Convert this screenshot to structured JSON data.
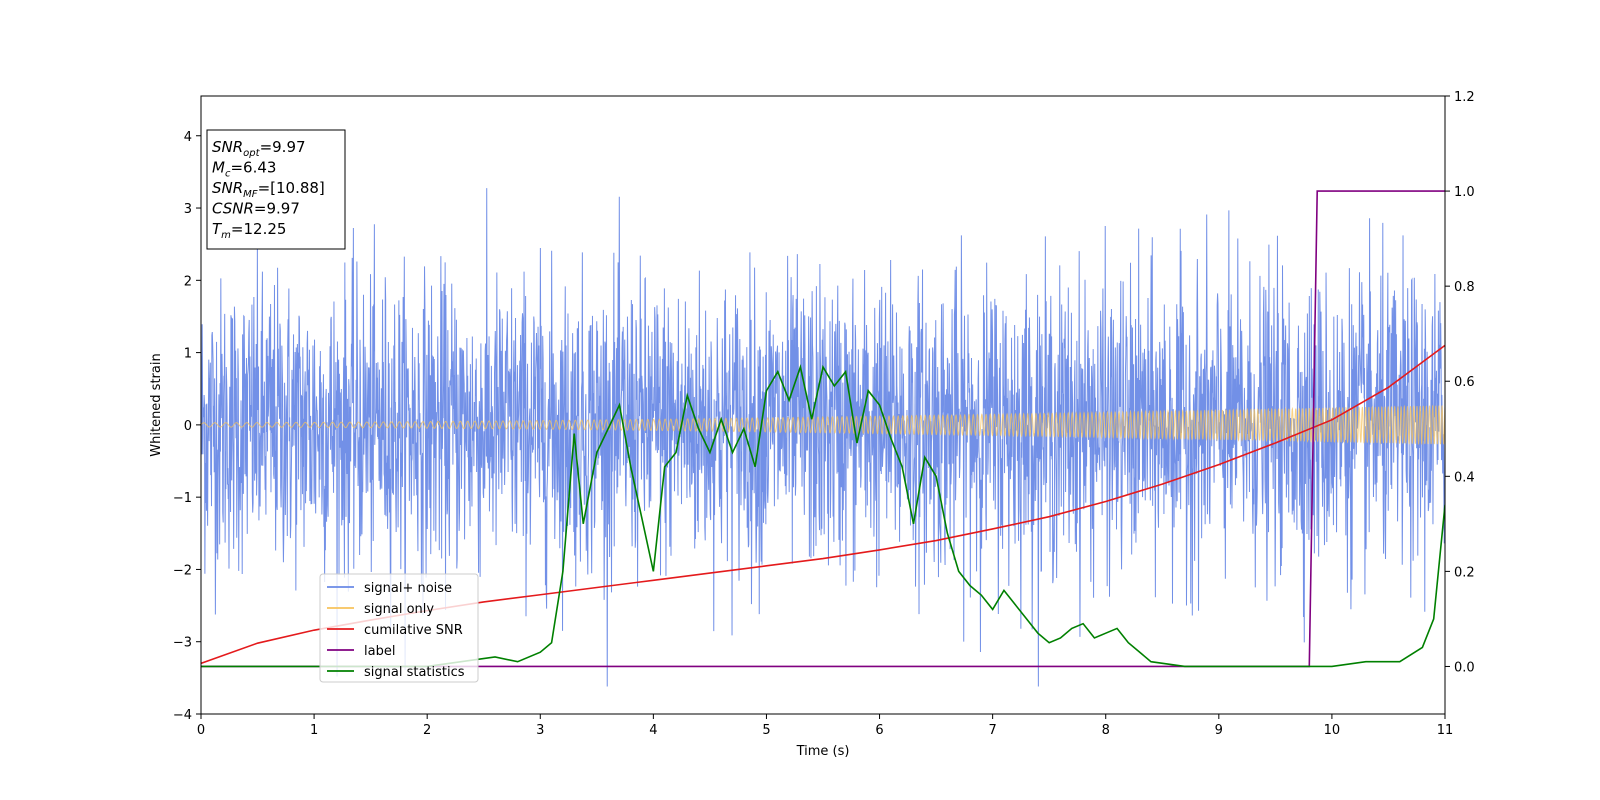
{
  "chart_data": {
    "type": "line",
    "title": "",
    "xlabel": "Time (s)",
    "ylabel_left": "Whitened strain",
    "ylabel_right": "",
    "xlim": [
      0,
      11
    ],
    "ylim_left": [
      -4,
      4.55
    ],
    "ylim_right": [
      -0.1,
      1.2
    ],
    "x_ticks": [
      "0",
      "1",
      "2",
      "3",
      "4",
      "5",
      "6",
      "7",
      "8",
      "9",
      "10",
      "11"
    ],
    "y_ticks_left": [
      "−4",
      "−3",
      "−2",
      "−1",
      "0",
      "1",
      "2",
      "3",
      "4"
    ],
    "y_ticks_right": [
      "0.0",
      "0.2",
      "0.4",
      "0.6",
      "0.8",
      "1.0",
      "1.2"
    ],
    "grid": false,
    "legend_position": "lower-left",
    "annotation": {
      "lines": [
        {
          "base": "SNR",
          "sub": "opt",
          "text": "=9.97"
        },
        {
          "base": "M",
          "sub": "c",
          "text": "=6.43"
        },
        {
          "base": "SNR",
          "sub": "MF",
          "text": "=[10.88]"
        },
        {
          "base": "CSNR",
          "sub": "",
          "text": "=9.97"
        },
        {
          "base": "T",
          "sub": "m",
          "text": "=12.25"
        }
      ]
    },
    "series": [
      {
        "name": "signal+ noise",
        "color": "#6a8ae6",
        "axis": "left",
        "envelope": {
          "std": 1.0,
          "peak_max": 4.15,
          "peak_min": -3.62
        }
      },
      {
        "name": "signal only",
        "color": "#f7c35c",
        "axis": "left",
        "amplitude_start": 0.03,
        "amplitude_end": 0.27
      },
      {
        "name": "cumilative SNR",
        "color": "#e41a1c",
        "axis": "left",
        "x": [
          0,
          0.5,
          1,
          1.5,
          2,
          2.5,
          3,
          3.5,
          4,
          4.5,
          5,
          5.5,
          6,
          6.5,
          7,
          7.5,
          8,
          8.5,
          9,
          9.5,
          10,
          10.5,
          11
        ],
        "y": [
          -3.3,
          -3.02,
          -2.84,
          -2.7,
          -2.57,
          -2.45,
          -2.35,
          -2.25,
          -2.15,
          -2.05,
          -1.95,
          -1.85,
          -1.73,
          -1.6,
          -1.44,
          -1.27,
          -1.06,
          -0.82,
          -0.55,
          -0.25,
          0.07,
          0.52,
          1.1
        ]
      },
      {
        "name": "label",
        "color": "#800080",
        "axis": "right",
        "x": [
          0,
          9.8,
          9.87,
          11
        ],
        "y": [
          0,
          0,
          1,
          1
        ]
      },
      {
        "name": "signal statistics",
        "color": "#008000",
        "axis": "right",
        "x": [
          0,
          1,
          2,
          2.3,
          2.6,
          2.8,
          3.0,
          3.1,
          3.2,
          3.3,
          3.38,
          3.5,
          3.6,
          3.7,
          3.8,
          3.9,
          4.0,
          4.1,
          4.2,
          4.3,
          4.4,
          4.5,
          4.6,
          4.7,
          4.8,
          4.9,
          5.0,
          5.1,
          5.2,
          5.3,
          5.4,
          5.5,
          5.6,
          5.7,
          5.8,
          5.9,
          6.0,
          6.1,
          6.2,
          6.3,
          6.4,
          6.5,
          6.6,
          6.7,
          6.8,
          6.9,
          7.0,
          7.1,
          7.2,
          7.3,
          7.4,
          7.5,
          7.6,
          7.7,
          7.8,
          7.9,
          8.0,
          8.1,
          8.2,
          8.4,
          8.7,
          9,
          9.5,
          9.8,
          10,
          10.3,
          10.6,
          10.8,
          10.9,
          11
        ],
        "y": [
          0.0,
          0.0,
          0.0,
          0.01,
          0.02,
          0.01,
          0.03,
          0.05,
          0.2,
          0.49,
          0.3,
          0.45,
          0.5,
          0.55,
          0.42,
          0.31,
          0.2,
          0.42,
          0.45,
          0.57,
          0.5,
          0.45,
          0.52,
          0.45,
          0.5,
          0.42,
          0.58,
          0.62,
          0.56,
          0.63,
          0.52,
          0.63,
          0.59,
          0.62,
          0.47,
          0.58,
          0.55,
          0.48,
          0.42,
          0.3,
          0.44,
          0.4,
          0.28,
          0.2,
          0.17,
          0.15,
          0.12,
          0.16,
          0.13,
          0.1,
          0.07,
          0.05,
          0.06,
          0.08,
          0.09,
          0.06,
          0.07,
          0.08,
          0.05,
          0.01,
          0.0,
          0.0,
          0.0,
          0.0,
          0.0,
          0.01,
          0.01,
          0.04,
          0.1,
          0.34
        ]
      }
    ]
  }
}
